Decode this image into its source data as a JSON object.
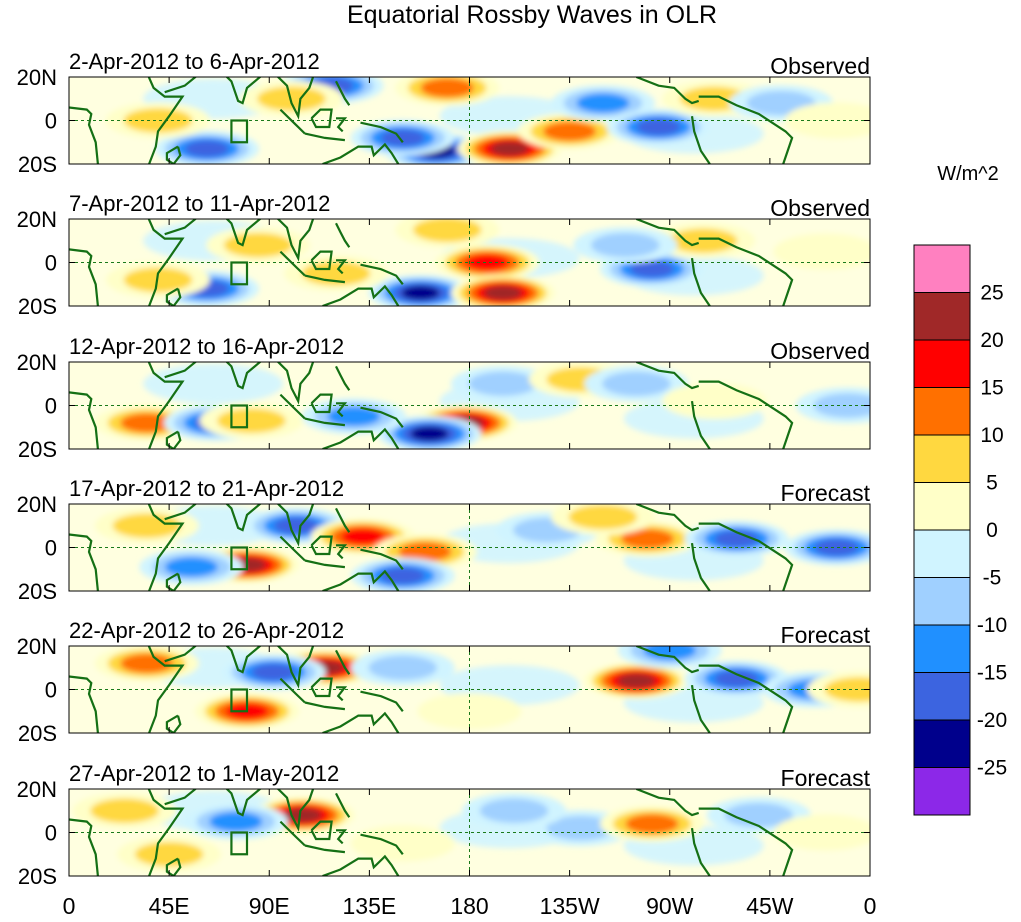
{
  "chart_data": {
    "type": "heatmap",
    "title": "Equatorial Rossby Waves in OLR",
    "units": "W/m^2",
    "x_ticks": [
      "0",
      "45E",
      "90E",
      "135E",
      "180",
      "135W",
      "90W",
      "45W",
      "0"
    ],
    "y_ticks": [
      "20N",
      "0",
      "20S"
    ],
    "lon_range": [
      0,
      360
    ],
    "lat_range": [
      -20,
      20
    ],
    "colorbar": {
      "labels": [
        "25",
        "20",
        "15",
        "10",
        "5",
        "0",
        "-5",
        "-10",
        "-15",
        "-20",
        "-25"
      ],
      "colors": [
        "#ff80c0",
        "#a02828",
        "#ff0000",
        "#ff7000",
        "#ffd840",
        "#ffffc8",
        "#d0f4ff",
        "#a0d0ff",
        "#2090ff",
        "#3c64e0",
        "#00008c",
        "#8c28e8"
      ]
    },
    "panels": [
      {
        "period": "2-Apr-2012 to 6-Apr-2012",
        "kind": "Observed",
        "anomalies": [
          {
            "lon": 165,
            "lat": -14,
            "value": -27
          },
          {
            "lon": 150,
            "lat": -8,
            "value": -22
          },
          {
            "lon": 198,
            "lat": -13,
            "value": 26
          },
          {
            "lon": 225,
            "lat": -5,
            "value": 16
          },
          {
            "lon": 170,
            "lat": 15,
            "value": 16
          },
          {
            "lon": 118,
            "lat": 16,
            "value": -22
          },
          {
            "lon": 62,
            "lat": -13,
            "value": -20
          },
          {
            "lon": 240,
            "lat": 8,
            "value": -18
          },
          {
            "lon": 265,
            "lat": -3,
            "value": -20
          },
          {
            "lon": 40,
            "lat": 0,
            "value": 10
          },
          {
            "lon": 290,
            "lat": 10,
            "value": 12
          },
          {
            "lon": 100,
            "lat": 10,
            "value": 12
          },
          {
            "lon": 320,
            "lat": 8,
            "value": -10
          },
          {
            "lon": 345,
            "lat": 0,
            "value": 8
          }
        ]
      },
      {
        "period": "7-Apr-2012 to 11-Apr-2012",
        "kind": "Observed",
        "anomalies": [
          {
            "lon": 62,
            "lat": -12,
            "value": -22
          },
          {
            "lon": 158,
            "lat": -14,
            "value": -26
          },
          {
            "lon": 188,
            "lat": 0,
            "value": 20
          },
          {
            "lon": 195,
            "lat": -14,
            "value": 26
          },
          {
            "lon": 120,
            "lat": -5,
            "value": 14
          },
          {
            "lon": 262,
            "lat": -3,
            "value": -22
          },
          {
            "lon": 285,
            "lat": 10,
            "value": 12
          },
          {
            "lon": 170,
            "lat": 15,
            "value": 10
          },
          {
            "lon": 250,
            "lat": 8,
            "value": -12
          },
          {
            "lon": 40,
            "lat": -8,
            "value": 12
          },
          {
            "lon": 85,
            "lat": 8,
            "value": 10
          },
          {
            "lon": 340,
            "lat": 5,
            "value": 7
          }
        ]
      },
      {
        "period": "12-Apr-2012 to 16-Apr-2012",
        "kind": "Observed",
        "anomalies": [
          {
            "lon": 35,
            "lat": -8,
            "value": 16
          },
          {
            "lon": 66,
            "lat": -8,
            "value": -22
          },
          {
            "lon": 82,
            "lat": -7,
            "value": 14
          },
          {
            "lon": 178,
            "lat": -8,
            "value": 26
          },
          {
            "lon": 162,
            "lat": -13,
            "value": -26
          },
          {
            "lon": 128,
            "lat": -5,
            "value": -16
          },
          {
            "lon": 195,
            "lat": 10,
            "value": -14
          },
          {
            "lon": 230,
            "lat": 12,
            "value": 10
          },
          {
            "lon": 255,
            "lat": 10,
            "value": -10
          },
          {
            "lon": 290,
            "lat": 2,
            "value": 8
          },
          {
            "lon": 350,
            "lat": 0,
            "value": -10
          }
        ]
      },
      {
        "period": "17-Apr-2012 to 21-Apr-2012",
        "kind": "Forecast",
        "anomalies": [
          {
            "lon": 102,
            "lat": 10,
            "value": -22
          },
          {
            "lon": 132,
            "lat": 5,
            "value": 20
          },
          {
            "lon": 160,
            "lat": -2,
            "value": 16
          },
          {
            "lon": 150,
            "lat": -13,
            "value": -22
          },
          {
            "lon": 80,
            "lat": -8,
            "value": 26
          },
          {
            "lon": 55,
            "lat": -9,
            "value": -16
          },
          {
            "lon": 260,
            "lat": 4,
            "value": 18
          },
          {
            "lon": 300,
            "lat": 4,
            "value": -22
          },
          {
            "lon": 345,
            "lat": 0,
            "value": -20
          },
          {
            "lon": 215,
            "lat": 8,
            "value": -12
          },
          {
            "lon": 35,
            "lat": 10,
            "value": 12
          },
          {
            "lon": 240,
            "lat": 14,
            "value": 10
          }
        ]
      },
      {
        "period": "22-Apr-2012 to 26-Apr-2012",
        "kind": "Forecast",
        "anomalies": [
          {
            "lon": 115,
            "lat": 10,
            "value": 26
          },
          {
            "lon": 92,
            "lat": 8,
            "value": -22
          },
          {
            "lon": 80,
            "lat": -10,
            "value": 20
          },
          {
            "lon": 35,
            "lat": 12,
            "value": 16
          },
          {
            "lon": 255,
            "lat": 4,
            "value": 26
          },
          {
            "lon": 300,
            "lat": 5,
            "value": -22
          },
          {
            "lon": 335,
            "lat": 0,
            "value": -18
          },
          {
            "lon": 270,
            "lat": 18,
            "value": -16
          },
          {
            "lon": 180,
            "lat": -10,
            "value": 8
          },
          {
            "lon": 150,
            "lat": 10,
            "value": -10
          },
          {
            "lon": 355,
            "lat": 0,
            "value": 12
          }
        ]
      },
      {
        "period": "27-Apr-2012 to 1-May-2012",
        "kind": "Forecast",
        "anomalies": [
          {
            "lon": 105,
            "lat": 8,
            "value": 26
          },
          {
            "lon": 75,
            "lat": 5,
            "value": -18
          },
          {
            "lon": 45,
            "lat": -10,
            "value": 14
          },
          {
            "lon": 25,
            "lat": 10,
            "value": 12
          },
          {
            "lon": 230,
            "lat": 2,
            "value": -14
          },
          {
            "lon": 262,
            "lat": 4,
            "value": 16
          },
          {
            "lon": 200,
            "lat": 10,
            "value": -10
          },
          {
            "lon": 150,
            "lat": -5,
            "value": 8
          },
          {
            "lon": 310,
            "lat": 8,
            "value": -10
          },
          {
            "lon": 340,
            "lat": 0,
            "value": 8
          }
        ]
      }
    ]
  }
}
